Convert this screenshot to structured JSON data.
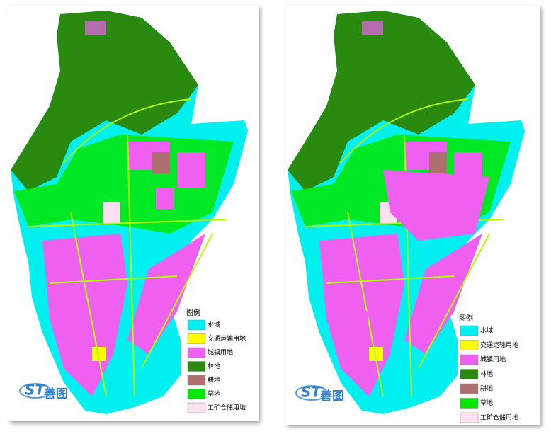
{
  "maps": [
    {
      "legend": {
        "title": "图例",
        "items": [
          {
            "label": "水域",
            "color": "#00f0f0"
          },
          {
            "label": "交通运输用地",
            "color": "#ffff00"
          },
          {
            "label": "城镇用地",
            "color": "#f060f0"
          },
          {
            "label": "林地",
            "color": "#2a8a10"
          },
          {
            "label": "耕地",
            "color": "#b07070"
          },
          {
            "label": "草地",
            "color": "#00e800"
          },
          {
            "label": "工矿仓储用地",
            "color": "#ffe0f0"
          }
        ]
      },
      "logo": {
        "mark": "ST",
        "name": "善图"
      }
    },
    {
      "legend": {
        "title": "图例",
        "items": [
          {
            "label": "水域",
            "color": "#00f0f0"
          },
          {
            "label": "交通运输用地",
            "color": "#ffff00"
          },
          {
            "label": "城镇用地",
            "color": "#f060f0"
          },
          {
            "label": "林地",
            "color": "#2a8a10"
          },
          {
            "label": "耕地",
            "color": "#b07070"
          },
          {
            "label": "草地",
            "color": "#00e800"
          },
          {
            "label": "工矿仓储用地",
            "color": "#ffe0f0"
          }
        ]
      },
      "logo": {
        "mark": "ST",
        "name": "善图"
      }
    }
  ]
}
